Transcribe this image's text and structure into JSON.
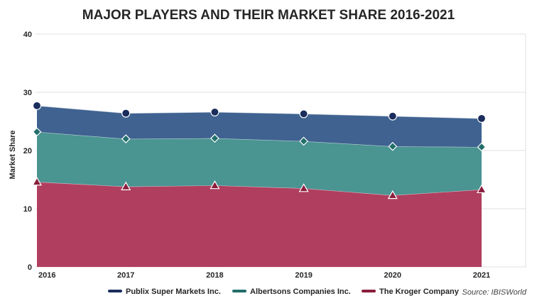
{
  "chart_data": {
    "type": "area",
    "stacked": true,
    "title": "MAJOR PLAYERS AND THEIR MARKET SHARE 2016-2021",
    "ylabel": "Market Share",
    "xlabel": "",
    "x": [
      "2016",
      "2017",
      "2018",
      "2019",
      "2020",
      "2021"
    ],
    "ylim": [
      0,
      40
    ],
    "yticks": [
      "0",
      "10",
      "20",
      "30",
      "40"
    ],
    "grid": true,
    "legend_position": "bottom",
    "series": [
      {
        "name": "The Kroger Company",
        "values": [
          14.6,
          13.8,
          14.0,
          13.5,
          12.3,
          13.3
        ],
        "cumulative": [
          14.6,
          13.8,
          14.0,
          13.5,
          12.3,
          13.3
        ],
        "color": "#b03e5e",
        "marker_color": "#8a1e3c",
        "marker": "triangle"
      },
      {
        "name": "Albertsons Companies Inc.",
        "values": [
          8.6,
          8.2,
          8.1,
          8.1,
          8.4,
          7.3
        ],
        "cumulative": [
          23.2,
          22.0,
          22.1,
          21.6,
          20.7,
          20.6
        ],
        "color": "#4a9492",
        "marker_color": "#226e6a",
        "marker": "diamond"
      },
      {
        "name": "Publix Super Markets Inc.",
        "values": [
          4.5,
          4.4,
          4.5,
          4.7,
          5.2,
          4.9
        ],
        "cumulative": [
          27.7,
          26.4,
          26.6,
          26.3,
          25.9,
          25.5
        ],
        "color": "#3f6290",
        "marker_color": "#1a2d5c",
        "marker": "circle"
      }
    ],
    "legend_order": [
      "Publix Super Markets Inc.",
      "Albertsons Companies Inc.",
      "The Kroger Company"
    ],
    "source": "Source: IBISWorld"
  }
}
